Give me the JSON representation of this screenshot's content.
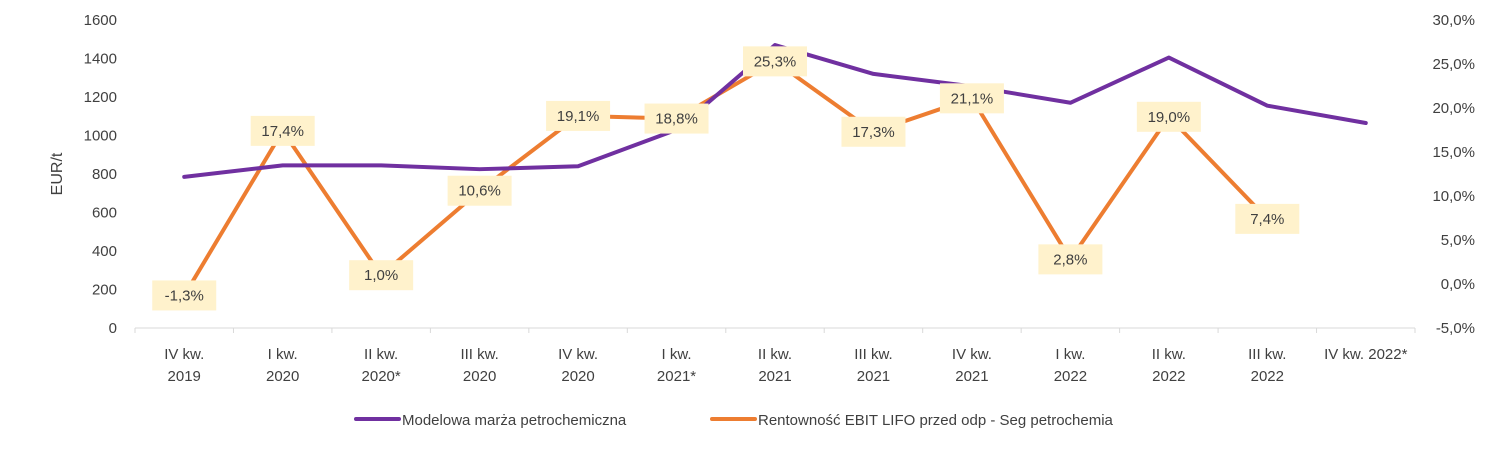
{
  "chart_data": {
    "type": "line",
    "ylabel": "EUR/t",
    "categories": [
      [
        "IV kw.",
        "2019"
      ],
      [
        "I kw.",
        "2020"
      ],
      [
        "II kw.",
        "2020*"
      ],
      [
        "III kw.",
        "2020"
      ],
      [
        "IV kw.",
        "2020"
      ],
      [
        "I kw.",
        "2021*"
      ],
      [
        "II kw.",
        "2021"
      ],
      [
        "III kw.",
        "2021"
      ],
      [
        "IV kw.",
        "2021"
      ],
      [
        "I kw.",
        "2022"
      ],
      [
        "II kw.",
        "2022"
      ],
      [
        "III kw.",
        "2022"
      ],
      [
        "IV kw. 2022*"
      ]
    ],
    "y_left": {
      "min": 0,
      "max": 1600,
      "ticks": [
        "0",
        "200",
        "400",
        "600",
        "800",
        "1000",
        "1200",
        "1400",
        "1600"
      ]
    },
    "y_right": {
      "min": -5,
      "max": 30,
      "ticks": [
        "-5,0%",
        "0,0%",
        "5,0%",
        "10,0%",
        "15,0%",
        "20,0%",
        "25,0%",
        "30,0%"
      ]
    },
    "series": [
      {
        "name": "Modelowa marża petrochemiczna",
        "axis": "left",
        "color": "#7030A0",
        "values": [
          785,
          845,
          845,
          825,
          840,
          1030,
          1470,
          1320,
          1255,
          1170,
          1405,
          1155,
          1065
        ]
      },
      {
        "name": "Rentowność EBIT LIFO przed odp - Seg petrochemia",
        "axis": "right",
        "color": "#ED7D31",
        "values": [
          -1.3,
          17.4,
          1.0,
          10.6,
          19.1,
          18.8,
          25.3,
          17.3,
          21.1,
          2.8,
          19.0,
          7.4,
          null
        ],
        "labels": [
          "-1,3%",
          "17,4%",
          "1,0%",
          "10,6%",
          "19,1%",
          "18,8%",
          "25,3%",
          "17,3%",
          "21,1%",
          "2,8%",
          "19,0%",
          "7,4%",
          null
        ]
      }
    ],
    "legend_position": "bottom",
    "grid": false,
    "label_box_color": "#FFF2CC"
  }
}
